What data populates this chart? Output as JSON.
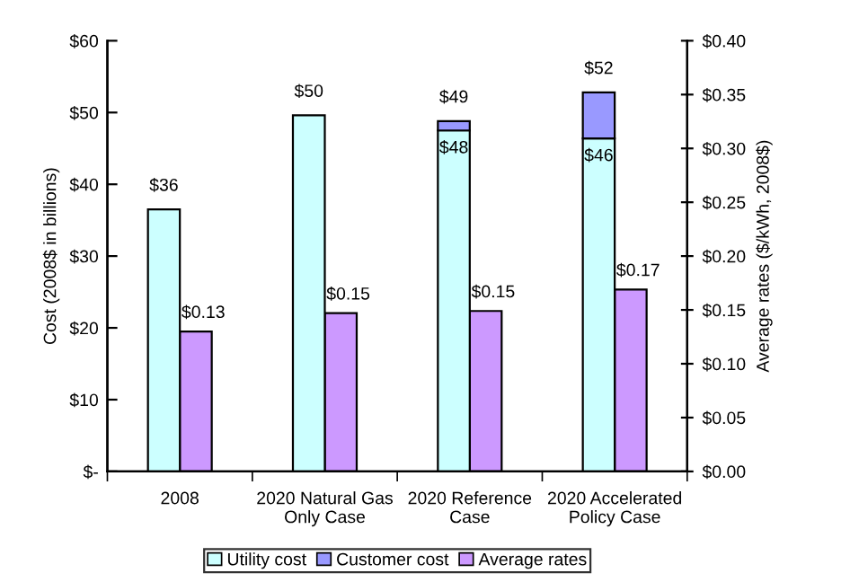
{
  "chart_data": {
    "type": "bar",
    "stacked": true,
    "categories": [
      "2008",
      "2020 Natural Gas\nOnly Case",
      "2020 Reference\nCase",
      "2020 Accelerated\nPolicy Case"
    ],
    "ylabel": "Cost (2008$ in billions)",
    "y2label": "Average rates ($/kWh, 2008$)",
    "ylim": [
      0,
      60
    ],
    "yticks": [
      {
        "value": 0,
        "label": "$-"
      },
      {
        "value": 10,
        "label": "$10"
      },
      {
        "value": 20,
        "label": "$20"
      },
      {
        "value": 30,
        "label": "$30"
      },
      {
        "value": 40,
        "label": "$40"
      },
      {
        "value": 50,
        "label": "$50"
      },
      {
        "value": 60,
        "label": "$60"
      }
    ],
    "y2lim": [
      0,
      0.4
    ],
    "y2ticks": [
      {
        "value": 0,
        "label": "$0.00"
      },
      {
        "value": 0.05,
        "label": "$0.05"
      },
      {
        "value": 0.1,
        "label": "$0.10"
      },
      {
        "value": 0.15,
        "label": "$0.15"
      },
      {
        "value": 0.2,
        "label": "$0.20"
      },
      {
        "value": 0.25,
        "label": "$0.25"
      },
      {
        "value": 0.3,
        "label": "$0.30"
      },
      {
        "value": 0.35,
        "label": "$0.35"
      },
      {
        "value": 0.4,
        "label": "$0.40"
      }
    ],
    "series": [
      {
        "name": "Utility cost",
        "color": "#ccffff",
        "values": [
          36.5,
          49.6,
          47.5,
          46.4
        ],
        "value_labels": [
          null,
          null,
          "$48",
          "$46"
        ]
      },
      {
        "name": "Customer cost",
        "color": "#9999ff",
        "values": [
          null,
          null,
          1.3,
          6.4
        ]
      },
      {
        "name": "Average rates",
        "color": "#cc99ff",
        "axis": "y2",
        "values": [
          0.13,
          0.147,
          0.149,
          0.169
        ],
        "value_labels": [
          "$0.13",
          "$0.15",
          "$0.15",
          "$0.17"
        ]
      }
    ],
    "totals": [
      "$36",
      "$50",
      "$49",
      "$52"
    ],
    "legend": "bottom",
    "grid": false
  }
}
